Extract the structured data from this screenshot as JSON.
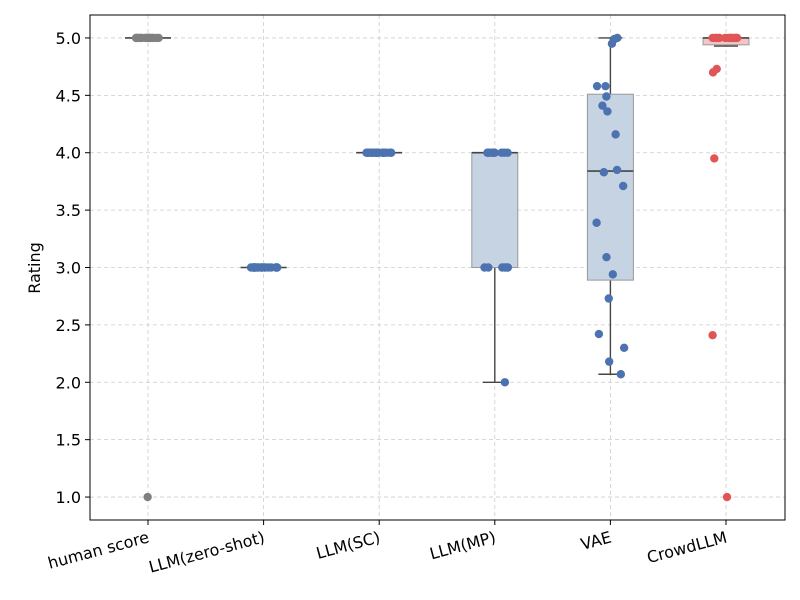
{
  "chart_data": {
    "type": "box",
    "title": "",
    "xlabel": "",
    "ylabel": "Rating",
    "ylim": [
      0.8,
      5.2
    ],
    "yticks": [
      1.0,
      1.5,
      2.0,
      2.5,
      3.0,
      3.5,
      4.0,
      4.5,
      5.0
    ],
    "ytick_labels": [
      "1.0",
      "1.5",
      "2.0",
      "2.5",
      "3.0",
      "3.5",
      "4.0",
      "4.5",
      "5.0"
    ],
    "grid": true,
    "categories": [
      "human score",
      "LLM(zero-shot)",
      "LLM(SC)",
      "LLM(MP)",
      "VAE",
      "CrowdLLM"
    ],
    "colors": {
      "human score": "#808080",
      "LLM(zero-shot)": "#4c72b0",
      "LLM(SC)": "#4c72b0",
      "LLM(MP)": "#4c72b0",
      "VAE": "#4c72b0",
      "CrowdLLM": "#e05555"
    },
    "box_fill": {
      "LLM(MP)": "#c5d3e2",
      "VAE": "#c5d3e2",
      "CrowdLLM": "#f2c6c6"
    },
    "boxes": [
      {
        "name": "human score",
        "q1": 5.0,
        "median": 5.0,
        "q3": 5.0,
        "whisker_low": 5.0,
        "whisker_high": 5.0
      },
      {
        "name": "LLM(zero-shot)",
        "q1": 3.0,
        "median": 3.0,
        "q3": 3.0,
        "whisker_low": 3.0,
        "whisker_high": 3.0
      },
      {
        "name": "LLM(SC)",
        "q1": 4.0,
        "median": 4.0,
        "q3": 4.0,
        "whisker_low": 4.0,
        "whisker_high": 4.0
      },
      {
        "name": "LLM(MP)",
        "q1": 3.0,
        "median": 4.0,
        "q3": 4.0,
        "whisker_low": 2.0,
        "whisker_high": 4.0
      },
      {
        "name": "VAE",
        "q1": 2.89,
        "median": 3.84,
        "q3": 4.51,
        "whisker_low": 2.07,
        "whisker_high": 5.0
      },
      {
        "name": "CrowdLLM",
        "q1": 4.94,
        "median": 5.0,
        "q3": 5.0,
        "whisker_low": 4.93,
        "whisker_high": 5.0
      }
    ],
    "points": {
      "human score": [
        5,
        5,
        5,
        5,
        5,
        5,
        5,
        5,
        5,
        5,
        5,
        5,
        5,
        5,
        5,
        5,
        5,
        5,
        5,
        1
      ],
      "LLM(zero-shot)": [
        3,
        3,
        3,
        3,
        3,
        3,
        3,
        3,
        3,
        3,
        3,
        3,
        3,
        3,
        3,
        3,
        3,
        3,
        3,
        3
      ],
      "LLM(SC)": [
        4,
        4,
        4,
        4,
        4,
        4,
        4,
        4,
        4,
        4,
        4,
        4,
        4,
        4,
        4,
        4,
        4,
        4,
        4,
        4
      ],
      "LLM(MP)": [
        4,
        4,
        4,
        4,
        4,
        4,
        4,
        4,
        4,
        4,
        4,
        3,
        3,
        3,
        3,
        3,
        3,
        2
      ],
      "VAE": [
        5.0,
        4.99,
        4.95,
        4.58,
        4.58,
        4.49,
        4.41,
        4.36,
        4.16,
        3.85,
        3.83,
        3.71,
        3.39,
        3.09,
        2.94,
        2.73,
        2.42,
        2.3,
        2.18,
        2.07
      ],
      "CrowdLLM": [
        5,
        5,
        5,
        5,
        5,
        5,
        5,
        5,
        5,
        5,
        5,
        5,
        5,
        5,
        4.73,
        4.7,
        3.95,
        2.41,
        1.0
      ]
    }
  }
}
